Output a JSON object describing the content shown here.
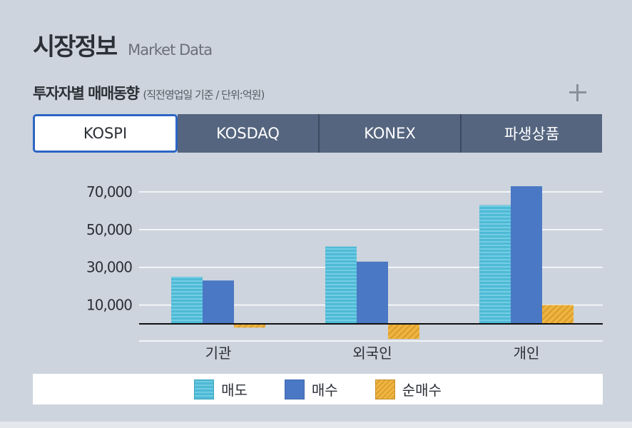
{
  "header": {
    "title_ko": "시장정보",
    "title_en": "Market Data",
    "subtitle": "투자자별 매매동향",
    "subtitle_note": "(직전영업일 기준 / 단위:억원)"
  },
  "tabs": [
    {
      "label": "KOSPI",
      "active": true
    },
    {
      "label": "KOSDAQ",
      "active": false
    },
    {
      "label": "KONEX",
      "active": false
    },
    {
      "label": "파생상품",
      "active": false
    }
  ],
  "colors": {
    "sell": "#4fbad6",
    "buy": "#4a78c4",
    "net": "#f0b640",
    "tab_bg": "#55657f",
    "accent": "#2b65c4"
  },
  "chart_data": {
    "type": "bar",
    "categories": [
      "기관",
      "외국인",
      "개인"
    ],
    "series": [
      {
        "name": "매도",
        "values": [
          25000,
          41000,
          63000
        ]
      },
      {
        "name": "매수",
        "values": [
          23000,
          33000,
          73000
        ]
      },
      {
        "name": "순매수",
        "values": [
          -2000,
          -8000,
          10000
        ]
      }
    ],
    "yticks": [
      10000,
      30000,
      50000,
      70000
    ],
    "ytick_labels": [
      "10,000",
      "30,000",
      "50,000",
      "70,000"
    ],
    "ylim": [
      -8000,
      70000
    ],
    "grid": true,
    "legend_position": "bottom"
  }
}
